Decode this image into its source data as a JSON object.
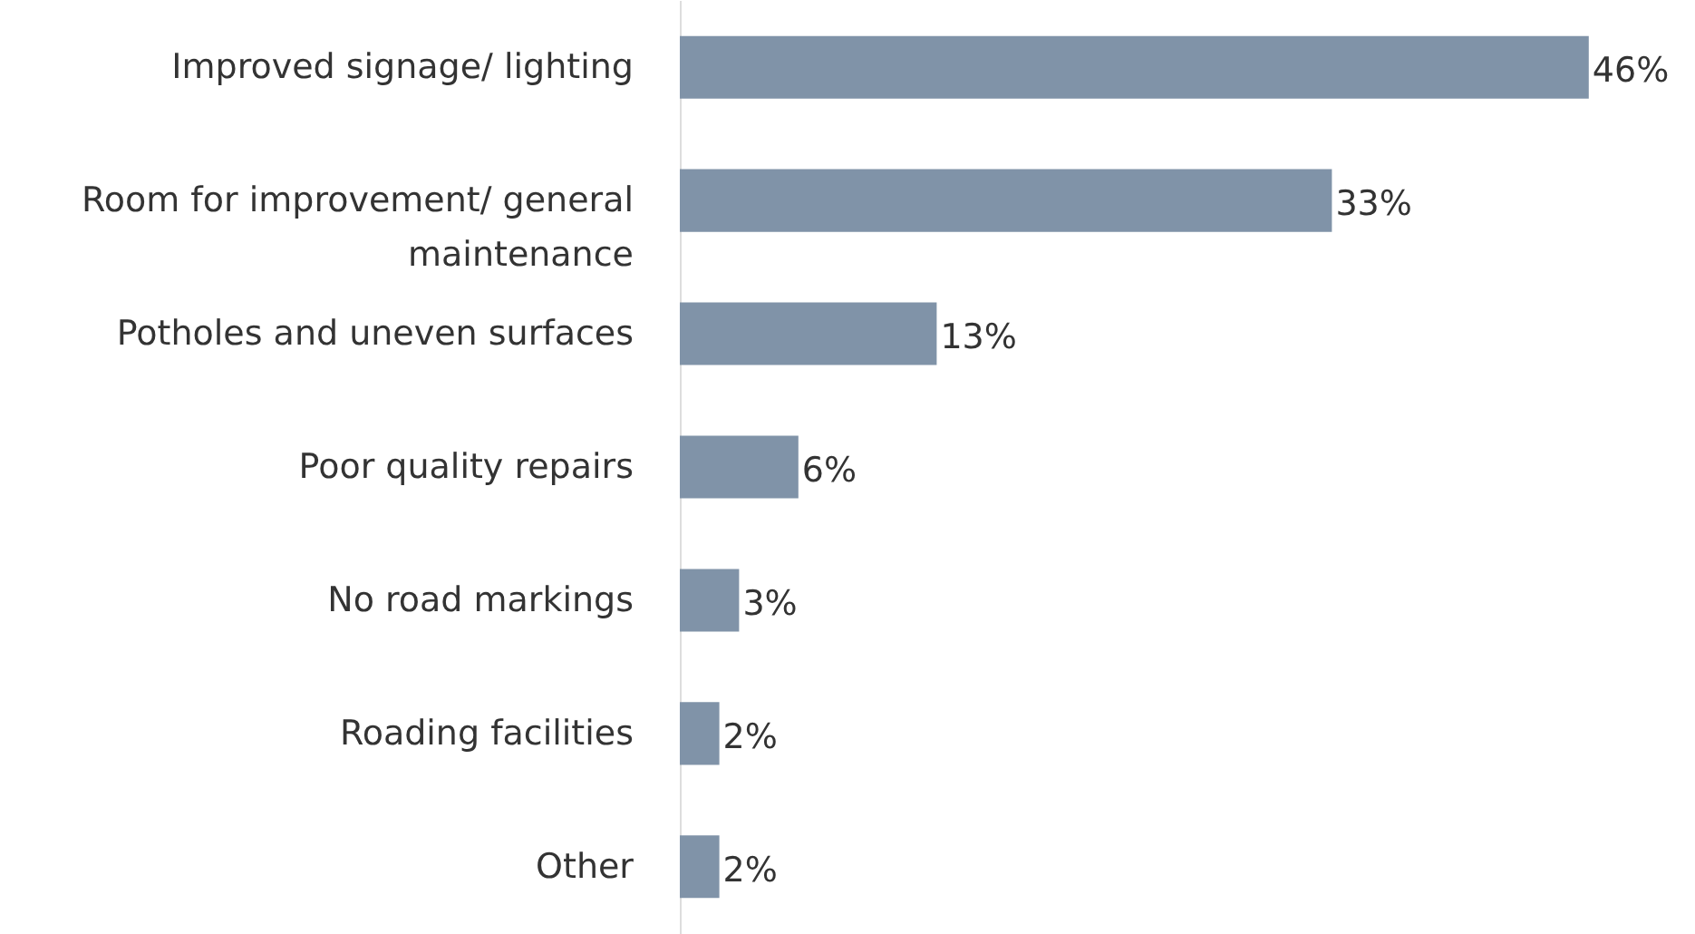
{
  "chart_data": {
    "type": "bar",
    "orientation": "horizontal",
    "categories": [
      "Improved signage/ lighting",
      "Room for improvement/ general maintenance",
      "Potholes and uneven surfaces",
      "Poor quality repairs",
      "No road markings",
      "Roading facilities",
      "Other"
    ],
    "values": [
      46,
      33,
      13,
      6,
      3,
      2,
      2
    ],
    "value_labels": [
      "46%",
      "33%",
      "13%",
      "6%",
      "3%",
      "2%",
      "2%"
    ],
    "color": "#8093a8"
  }
}
